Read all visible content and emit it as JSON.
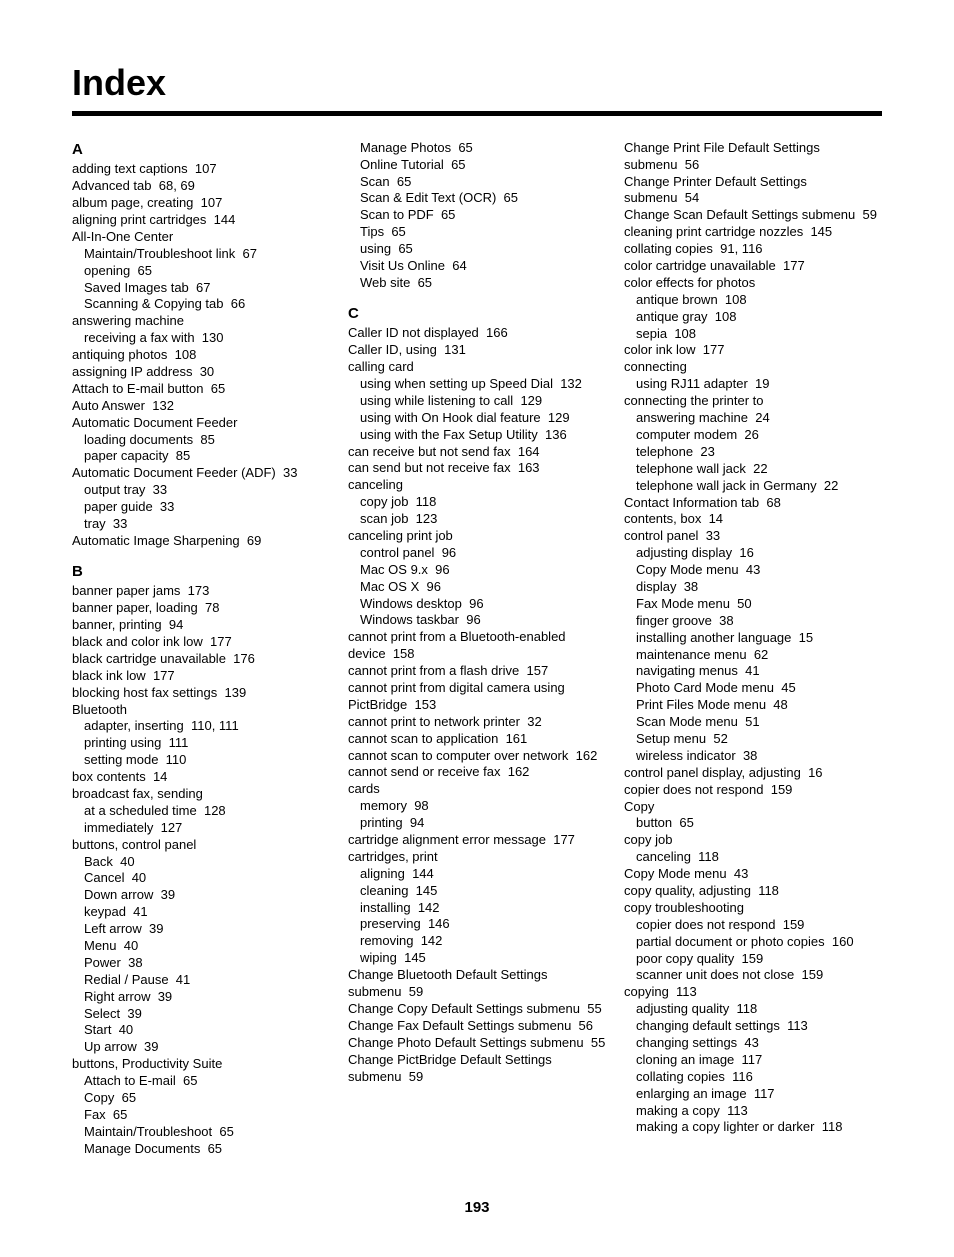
{
  "title": "Index",
  "page_number": "193",
  "columns": [
    {
      "items": [
        {
          "type": "letter",
          "text": "A"
        },
        {
          "type": "entry",
          "text": "adding text captions",
          "pg": "107"
        },
        {
          "type": "entry",
          "text": "Advanced tab",
          "pg": "68, 69"
        },
        {
          "type": "entry",
          "text": "album page, creating",
          "pg": "107"
        },
        {
          "type": "entry",
          "text": "aligning print cartridges",
          "pg": "144"
        },
        {
          "type": "entry",
          "text": "All-In-One Center"
        },
        {
          "type": "sub",
          "text": "Maintain/Troubleshoot link",
          "pg": "67"
        },
        {
          "type": "sub",
          "text": "opening",
          "pg": "65"
        },
        {
          "type": "sub",
          "text": "Saved Images tab",
          "pg": "67"
        },
        {
          "type": "sub",
          "text": "Scanning & Copying tab",
          "pg": "66"
        },
        {
          "type": "entry",
          "text": "answering machine"
        },
        {
          "type": "sub",
          "text": "receiving a fax with",
          "pg": "130"
        },
        {
          "type": "entry",
          "text": "antiquing photos",
          "pg": "108"
        },
        {
          "type": "entry",
          "text": "assigning IP address",
          "pg": "30"
        },
        {
          "type": "entry",
          "text": "Attach to E-mail button",
          "pg": "65"
        },
        {
          "type": "entry",
          "text": "Auto Answer",
          "pg": "132"
        },
        {
          "type": "entry",
          "text": "Automatic Document Feeder"
        },
        {
          "type": "sub",
          "text": "loading documents",
          "pg": "85"
        },
        {
          "type": "sub",
          "text": "paper capacity",
          "pg": "85"
        },
        {
          "type": "entry",
          "text": "Automatic Document Feeder (ADF)",
          "pg": "33"
        },
        {
          "type": "sub",
          "text": "output tray",
          "pg": "33"
        },
        {
          "type": "sub",
          "text": "paper guide",
          "pg": "33"
        },
        {
          "type": "sub",
          "text": "tray",
          "pg": "33"
        },
        {
          "type": "entry",
          "text": "Automatic Image Sharpening",
          "pg": "69"
        },
        {
          "type": "letter",
          "text": "B"
        },
        {
          "type": "entry",
          "text": "banner paper jams",
          "pg": "173"
        },
        {
          "type": "entry",
          "text": "banner paper, loading",
          "pg": "78"
        },
        {
          "type": "entry",
          "text": "banner, printing",
          "pg": "94"
        },
        {
          "type": "entry",
          "text": "black and color ink low",
          "pg": "177"
        },
        {
          "type": "entry",
          "text": "black cartridge unavailable",
          "pg": "176"
        },
        {
          "type": "entry",
          "text": "black ink low",
          "pg": "177"
        },
        {
          "type": "entry",
          "text": "blocking host fax settings",
          "pg": "139"
        },
        {
          "type": "entry",
          "text": "Bluetooth"
        },
        {
          "type": "sub",
          "text": "adapter, inserting",
          "pg": "110, 111"
        },
        {
          "type": "sub",
          "text": "printing using",
          "pg": "111"
        },
        {
          "type": "sub",
          "text": "setting mode",
          "pg": "110"
        },
        {
          "type": "entry",
          "text": "box contents",
          "pg": "14"
        },
        {
          "type": "entry",
          "text": "broadcast fax, sending"
        },
        {
          "type": "sub",
          "text": "at a scheduled time",
          "pg": "128"
        },
        {
          "type": "sub",
          "text": "immediately",
          "pg": "127"
        },
        {
          "type": "entry",
          "text": "buttons, control panel"
        },
        {
          "type": "sub",
          "text": "Back",
          "pg": "40"
        },
        {
          "type": "sub",
          "text": "Cancel",
          "pg": "40"
        },
        {
          "type": "sub",
          "text": "Down arrow",
          "pg": "39"
        },
        {
          "type": "sub",
          "text": "keypad",
          "pg": "41"
        },
        {
          "type": "sub",
          "text": "Left arrow",
          "pg": "39"
        },
        {
          "type": "sub",
          "text": "Menu",
          "pg": "40"
        },
        {
          "type": "sub",
          "text": "Power",
          "pg": "38"
        },
        {
          "type": "sub",
          "text": "Redial / Pause",
          "pg": "41"
        },
        {
          "type": "sub",
          "text": "Right arrow",
          "pg": "39"
        },
        {
          "type": "sub",
          "text": "Select",
          "pg": "39"
        },
        {
          "type": "sub",
          "text": "Start",
          "pg": "40"
        },
        {
          "type": "sub",
          "text": "Up arrow",
          "pg": "39"
        },
        {
          "type": "entry",
          "text": "buttons, Productivity Suite"
        },
        {
          "type": "sub",
          "text": "Attach to E-mail",
          "pg": "65"
        },
        {
          "type": "sub",
          "text": "Copy",
          "pg": "65"
        },
        {
          "type": "sub",
          "text": "Fax",
          "pg": "65"
        },
        {
          "type": "sub",
          "text": "Maintain/Troubleshoot",
          "pg": "65"
        },
        {
          "type": "sub",
          "text": "Manage Documents",
          "pg": "65"
        }
      ]
    },
    {
      "items": [
        {
          "type": "sub",
          "text": "Manage Photos",
          "pg": "65"
        },
        {
          "type": "sub",
          "text": "Online Tutorial",
          "pg": "65"
        },
        {
          "type": "sub",
          "text": "Scan",
          "pg": "65"
        },
        {
          "type": "sub",
          "text": "Scan & Edit Text (OCR)",
          "pg": "65"
        },
        {
          "type": "sub",
          "text": "Scan to PDF",
          "pg": "65"
        },
        {
          "type": "sub",
          "text": "Tips",
          "pg": "65"
        },
        {
          "type": "sub",
          "text": "using",
          "pg": "65"
        },
        {
          "type": "sub",
          "text": "Visit Us Online",
          "pg": "64"
        },
        {
          "type": "sub",
          "text": "Web site",
          "pg": "65"
        },
        {
          "type": "letter",
          "text": "C"
        },
        {
          "type": "entry",
          "text": "Caller ID not displayed",
          "pg": "166"
        },
        {
          "type": "entry",
          "text": "Caller ID, using",
          "pg": "131"
        },
        {
          "type": "entry",
          "text": "calling card"
        },
        {
          "type": "sub",
          "text": "using when setting up Speed Dial",
          "pg": "132"
        },
        {
          "type": "sub",
          "text": "using while listening to call",
          "pg": "129"
        },
        {
          "type": "sub",
          "text": "using with On Hook dial feature",
          "pg": "129"
        },
        {
          "type": "sub",
          "text": "using with the Fax Setup Utility",
          "pg": "136"
        },
        {
          "type": "entry",
          "text": "can receive but not send fax",
          "pg": "164"
        },
        {
          "type": "entry",
          "text": "can send but not receive fax",
          "pg": "163"
        },
        {
          "type": "entry",
          "text": "canceling"
        },
        {
          "type": "sub",
          "text": "copy job",
          "pg": "118"
        },
        {
          "type": "sub",
          "text": "scan job",
          "pg": "123"
        },
        {
          "type": "entry",
          "text": "canceling print job"
        },
        {
          "type": "sub",
          "text": "control panel",
          "pg": "96"
        },
        {
          "type": "sub",
          "text": "Mac OS 9.x",
          "pg": "96"
        },
        {
          "type": "sub",
          "text": "Mac OS X",
          "pg": "96"
        },
        {
          "type": "sub",
          "text": "Windows desktop",
          "pg": "96"
        },
        {
          "type": "sub",
          "text": "Windows taskbar",
          "pg": "96"
        },
        {
          "type": "entry",
          "text": "cannot print from a Bluetooth-enabled device",
          "pg": "158"
        },
        {
          "type": "entry",
          "text": "cannot print from a flash drive",
          "pg": "157"
        },
        {
          "type": "entry",
          "text": "cannot print from digital camera using PictBridge",
          "pg": "153"
        },
        {
          "type": "entry",
          "text": "cannot print to network printer",
          "pg": "32"
        },
        {
          "type": "entry",
          "text": "cannot scan to application",
          "pg": "161"
        },
        {
          "type": "entry",
          "text": "cannot scan to computer over network",
          "pg": "162"
        },
        {
          "type": "entry",
          "text": "cannot send or receive fax",
          "pg": "162"
        },
        {
          "type": "entry",
          "text": "cards"
        },
        {
          "type": "sub",
          "text": "memory",
          "pg": "98"
        },
        {
          "type": "sub",
          "text": "printing",
          "pg": "94"
        },
        {
          "type": "entry",
          "text": "cartridge alignment error message",
          "pg": "177"
        },
        {
          "type": "entry",
          "text": "cartridges, print"
        },
        {
          "type": "sub",
          "text": "aligning",
          "pg": "144"
        },
        {
          "type": "sub",
          "text": "cleaning",
          "pg": "145"
        },
        {
          "type": "sub",
          "text": "installing",
          "pg": "142"
        },
        {
          "type": "sub",
          "text": "preserving",
          "pg": "146"
        },
        {
          "type": "sub",
          "text": "removing",
          "pg": "142"
        },
        {
          "type": "sub",
          "text": "wiping",
          "pg": "145"
        },
        {
          "type": "entry",
          "text": "Change Bluetooth Default Settings submenu",
          "pg": "59"
        },
        {
          "type": "entry",
          "text": "Change Copy Default Settings submenu",
          "pg": "55"
        },
        {
          "type": "entry",
          "text": "Change Fax Default Settings submenu",
          "pg": "56"
        },
        {
          "type": "entry",
          "text": "Change Photo Default Settings submenu",
          "pg": "55"
        },
        {
          "type": "entry",
          "text": "Change PictBridge Default Settings submenu",
          "pg": "59"
        }
      ]
    },
    {
      "items": [
        {
          "type": "entry",
          "text": "Change Print File Default Settings submenu",
          "pg": "56"
        },
        {
          "type": "entry",
          "text": "Change Printer Default Settings submenu",
          "pg": "54"
        },
        {
          "type": "entry",
          "text": "Change Scan Default Settings submenu",
          "pg": "59"
        },
        {
          "type": "entry",
          "text": "cleaning print cartridge nozzles",
          "pg": "145"
        },
        {
          "type": "entry",
          "text": "collating copies",
          "pg": "91, 116"
        },
        {
          "type": "entry",
          "text": "color cartridge unavailable",
          "pg": "177"
        },
        {
          "type": "entry",
          "text": "color effects for photos"
        },
        {
          "type": "sub",
          "text": "antique brown",
          "pg": "108"
        },
        {
          "type": "sub",
          "text": "antique gray",
          "pg": "108"
        },
        {
          "type": "sub",
          "text": "sepia",
          "pg": "108"
        },
        {
          "type": "entry",
          "text": "color ink low",
          "pg": "177"
        },
        {
          "type": "entry",
          "text": "connecting"
        },
        {
          "type": "sub",
          "text": "using RJ11 adapter",
          "pg": "19"
        },
        {
          "type": "entry",
          "text": "connecting the printer to"
        },
        {
          "type": "sub",
          "text": "answering machine",
          "pg": "24"
        },
        {
          "type": "sub",
          "text": "computer modem",
          "pg": "26"
        },
        {
          "type": "sub",
          "text": "telephone",
          "pg": "23"
        },
        {
          "type": "sub",
          "text": "telephone wall jack",
          "pg": "22"
        },
        {
          "type": "sub",
          "text": "telephone wall jack in Germany",
          "pg": "22"
        },
        {
          "type": "entry",
          "text": "Contact Information tab",
          "pg": "68"
        },
        {
          "type": "entry",
          "text": "contents, box",
          "pg": "14"
        },
        {
          "type": "entry",
          "text": "control panel",
          "pg": "33"
        },
        {
          "type": "sub",
          "text": "adjusting display",
          "pg": "16"
        },
        {
          "type": "sub",
          "text": "Copy Mode menu",
          "pg": "43"
        },
        {
          "type": "sub",
          "text": "display",
          "pg": "38"
        },
        {
          "type": "sub",
          "text": "Fax Mode menu",
          "pg": "50"
        },
        {
          "type": "sub",
          "text": "finger groove",
          "pg": "38"
        },
        {
          "type": "sub",
          "text": "installing another language",
          "pg": "15"
        },
        {
          "type": "sub",
          "text": "maintenance menu",
          "pg": "62"
        },
        {
          "type": "sub",
          "text": "navigating menus",
          "pg": "41"
        },
        {
          "type": "sub",
          "text": "Photo Card Mode menu",
          "pg": "45"
        },
        {
          "type": "sub",
          "text": "Print Files Mode menu",
          "pg": "48"
        },
        {
          "type": "sub",
          "text": "Scan Mode menu",
          "pg": "51"
        },
        {
          "type": "sub",
          "text": "Setup menu",
          "pg": "52"
        },
        {
          "type": "sub",
          "text": "wireless indicator",
          "pg": "38"
        },
        {
          "type": "entry",
          "text": "control panel display, adjusting",
          "pg": "16"
        },
        {
          "type": "entry",
          "text": "copier does not respond",
          "pg": "159"
        },
        {
          "type": "entry",
          "text": "Copy"
        },
        {
          "type": "sub",
          "text": "button",
          "pg": "65"
        },
        {
          "type": "entry",
          "text": "copy job"
        },
        {
          "type": "sub",
          "text": "canceling",
          "pg": "118"
        },
        {
          "type": "entry",
          "text": "Copy Mode menu",
          "pg": "43"
        },
        {
          "type": "entry",
          "text": "copy quality, adjusting",
          "pg": "118"
        },
        {
          "type": "entry",
          "text": "copy troubleshooting"
        },
        {
          "type": "sub",
          "text": "copier does not respond",
          "pg": "159"
        },
        {
          "type": "sub",
          "text": "partial document or photo copies",
          "pg": "160"
        },
        {
          "type": "sub",
          "text": "poor copy quality",
          "pg": "159"
        },
        {
          "type": "sub",
          "text": "scanner unit does not close",
          "pg": "159"
        },
        {
          "type": "entry",
          "text": "copying",
          "pg": "113"
        },
        {
          "type": "sub",
          "text": "adjusting quality",
          "pg": "118"
        },
        {
          "type": "sub",
          "text": "changing default settings",
          "pg": "113"
        },
        {
          "type": "sub",
          "text": "changing settings",
          "pg": "43"
        },
        {
          "type": "sub",
          "text": "cloning an image",
          "pg": "117"
        },
        {
          "type": "sub",
          "text": "collating copies",
          "pg": "116"
        },
        {
          "type": "sub",
          "text": "enlarging an image",
          "pg": "117"
        },
        {
          "type": "sub",
          "text": "making a copy",
          "pg": "113"
        },
        {
          "type": "sub",
          "text": "making a copy lighter or darker",
          "pg": "118"
        }
      ]
    }
  ]
}
